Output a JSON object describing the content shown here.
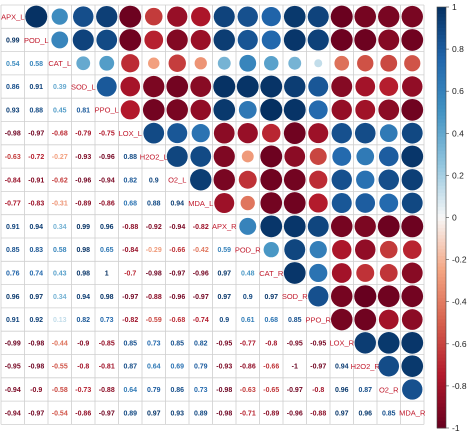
{
  "chart_data": {
    "type": "heatmap",
    "title": "",
    "variables": [
      "APX_L",
      "POD_L",
      "CAT_L",
      "SOD_L",
      "PPO_L",
      "LOX_L",
      "H2O2_L",
      "O2_L",
      "MDA_L",
      "APX_R",
      "POD_R",
      "CAT_R",
      "SOD_R",
      "PPO_R",
      "LOX_R",
      "H2O2_R",
      "O2_R",
      "MDA_R"
    ],
    "variable_labels": [
      "APX_L",
      "POD_L",
      "CAT_L",
      "SOD_L",
      "PPO_L",
      "LOX_L",
      "H2O2_L",
      "O2_L",
      "MDA_L",
      "APX_R",
      "POD_R",
      "CAT_R",
      "SOD_R",
      "PPO_R",
      "LOX_R",
      "H2O2_R",
      "O2_R",
      "MDA_R"
    ],
    "lower_triangle_values": [
      [],
      [
        0.99
      ],
      [
        0.54,
        0.58
      ],
      [
        0.86,
        0.91,
        0.39
      ],
      [
        0.93,
        0.88,
        0.45,
        0.81
      ],
      [
        -0.98,
        -0.97,
        -0.68,
        -0.79,
        -0.75
      ],
      [
        -0.63,
        -0.72,
        -0.27,
        -0.93,
        -0.96,
        0.88
      ],
      [
        -0.84,
        -0.91,
        -0.62,
        -0.96,
        -0.94,
        0.82,
        0.9
      ],
      [
        -0.77,
        -0.83,
        -0.31,
        -0.89,
        -0.86,
        0.68,
        0.88,
        0.94
      ],
      [
        0.91,
        0.94,
        0.34,
        0.99,
        0.96,
        -0.88,
        -0.92,
        -0.94,
        -0.82
      ],
      [
        0.85,
        0.83,
        0.58,
        0.98,
        0.65,
        -0.84,
        -0.29,
        -0.66,
        -0.42,
        0.59
      ],
      [
        0.76,
        0.74,
        0.43,
        0.98,
        1,
        -0.7,
        -0.98,
        -0.97,
        -0.96,
        0.97,
        0.48
      ],
      [
        0.96,
        0.97,
        0.34,
        0.94,
        0.98,
        -0.97,
        -0.88,
        -0.96,
        -0.97,
        0.97,
        0.9,
        0.97
      ],
      [
        0.91,
        0.92,
        0.13,
        0.82,
        0.73,
        -0.82,
        -0.59,
        -0.68,
        -0.74,
        0.9,
        0.61,
        0.68,
        0.85
      ],
      [
        -0.99,
        -0.98,
        -0.44,
        -0.9,
        -0.85,
        0.85,
        0.73,
        0.85,
        0.82,
        -0.95,
        -0.77,
        -0.8,
        -0.95,
        -0.95
      ],
      [
        -0.95,
        -0.98,
        -0.55,
        -0.8,
        -0.81,
        0.87,
        0.64,
        0.69,
        0.79,
        -0.93,
        -0.86,
        -0.66,
        -1,
        -0.97,
        0.94
      ],
      [
        -0.94,
        -0.9,
        -0.58,
        -0.73,
        -0.88,
        0.64,
        0.79,
        0.86,
        0.73,
        -0.98,
        -0.63,
        -0.65,
        -0.97,
        -0.8,
        0.96,
        0.87
      ],
      [
        -0.94,
        -0.97,
        -0.54,
        -0.86,
        -0.97,
        0.89,
        0.97,
        0.93,
        0.89,
        -0.98,
        -0.71,
        -0.89,
        -0.96,
        -0.88,
        0.97,
        0.96,
        0.85
      ]
    ],
    "upper_display": "circle",
    "lower_display": "number",
    "color_scale": {
      "low": "#67001f",
      "mid": "#f7f7f7",
      "high": "#053061"
    },
    "legend": {
      "position": "right",
      "ticks": [
        1,
        0.8,
        0.6,
        0.4,
        0.2,
        0,
        -0.2,
        -0.4,
        -0.6,
        -0.8,
        -1
      ]
    },
    "ylim": [
      -1,
      1
    ],
    "grid": true
  }
}
